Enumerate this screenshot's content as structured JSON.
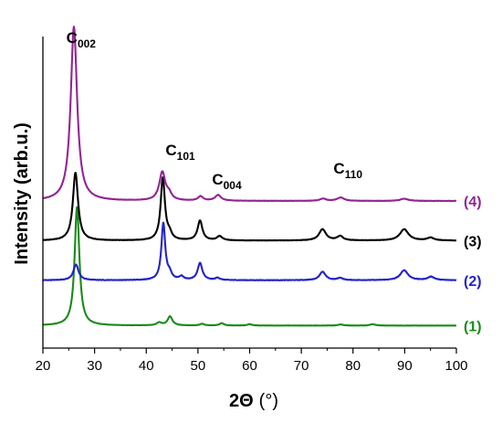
{
  "chart_data": {
    "type": "line",
    "xlabel_main": "2Θ",
    "xlabel_unit": "(°)",
    "ylabel": "Intensity (arb.u.)",
    "xlim": [
      20,
      100
    ],
    "xticks": [
      "20",
      "30",
      "40",
      "50",
      "60",
      "70",
      "80",
      "90",
      "100"
    ],
    "y_ticks_shown": false,
    "grid": false,
    "peak_labels": [
      {
        "name": "C",
        "sub": "002",
        "x": 26.3
      },
      {
        "name": "C",
        "sub": "101",
        "x": 45.5
      },
      {
        "name": "C",
        "sub": "004",
        "x": 54.5
      },
      {
        "name": "C",
        "sub": "110",
        "x": 78.0
      }
    ],
    "series": [
      {
        "label": "(1)",
        "color": "#1a8a1a",
        "offset": 0,
        "baseline": 0.02,
        "noise": 0.004,
        "peaks": [
          [
            26.6,
            4.2,
            0.55
          ],
          [
            42.5,
            0.1,
            0.6
          ],
          [
            44.6,
            0.32,
            0.55
          ],
          [
            50.8,
            0.06,
            0.5
          ],
          [
            54.6,
            0.08,
            0.5
          ],
          [
            60.0,
            0.05,
            0.5
          ],
          [
            77.6,
            0.04,
            0.6
          ],
          [
            83.8,
            0.05,
            0.6
          ]
        ]
      },
      {
        "label": "(2)",
        "color": "#2323c8",
        "offset": 1.6,
        "baseline": 0.02,
        "noise": 0.008,
        "peaks": [
          [
            26.4,
            0.55,
            0.6
          ],
          [
            43.3,
            2.0,
            0.45
          ],
          [
            44.5,
            0.2,
            0.5
          ],
          [
            46.8,
            0.12,
            0.5
          ],
          [
            50.4,
            0.6,
            0.55
          ],
          [
            53.8,
            0.08,
            0.5
          ],
          [
            74.1,
            0.3,
            0.7
          ],
          [
            77.5,
            0.08,
            0.6
          ],
          [
            89.9,
            0.35,
            0.9
          ],
          [
            95.1,
            0.12,
            0.8
          ]
        ]
      },
      {
        "label": "(3)",
        "color": "#000000",
        "offset": 3.0,
        "baseline": 0.02,
        "noise": 0.006,
        "peaks": [
          [
            26.3,
            2.4,
            0.6
          ],
          [
            43.2,
            2.2,
            0.5
          ],
          [
            44.5,
            0.2,
            0.5
          ],
          [
            50.4,
            0.7,
            0.55
          ],
          [
            54.2,
            0.15,
            0.6
          ],
          [
            74.1,
            0.4,
            0.8
          ],
          [
            77.5,
            0.15,
            0.7
          ],
          [
            89.9,
            0.4,
            1.0
          ],
          [
            95.0,
            0.1,
            0.8
          ]
        ]
      },
      {
        "label": "(4)",
        "color": "#932493",
        "offset": 4.4,
        "baseline": 0.02,
        "noise": 0.005,
        "peaks": [
          [
            26.0,
            6.15,
            0.75
          ],
          [
            43.1,
            1.0,
            0.7
          ],
          [
            44.4,
            0.2,
            0.6
          ],
          [
            50.5,
            0.15,
            0.6
          ],
          [
            53.9,
            0.2,
            0.7
          ],
          [
            74.2,
            0.08,
            0.7
          ],
          [
            77.6,
            0.12,
            0.8
          ],
          [
            89.9,
            0.08,
            0.9
          ]
        ]
      }
    ]
  }
}
